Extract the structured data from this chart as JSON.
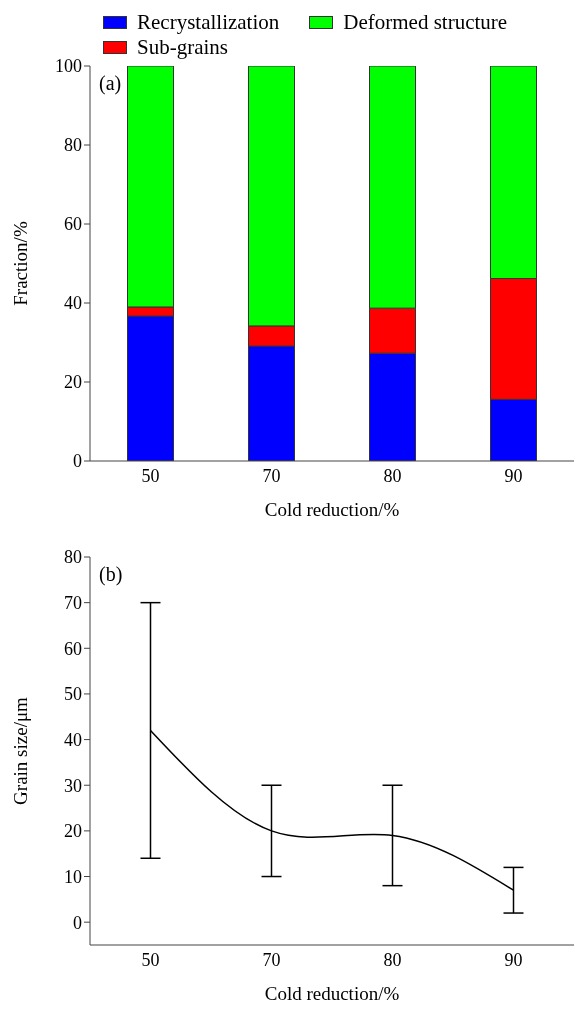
{
  "chart_data": [
    {
      "type": "bar",
      "stacked": true,
      "categories": [
        "50",
        "70",
        "80",
        "90"
      ],
      "series": [
        {
          "name": "Recrystallization",
          "color": "#0000ff",
          "values": [
            36.7,
            29.1,
            27.3,
            15.6
          ]
        },
        {
          "name": "Sub-grains",
          "color": "#ff0000",
          "values": [
            2.3,
            5.1,
            11.4,
            30.6
          ]
        },
        {
          "name": "Deformed structure",
          "color": "#00ff00",
          "values": [
            61,
            65.8,
            61.3,
            53.8
          ]
        }
      ],
      "ylim": [
        0,
        100
      ],
      "yticks": [
        0,
        20,
        40,
        60,
        80,
        100
      ],
      "xlabel": "Cold reduction/%",
      "ylabel": "Fraction/%",
      "legend": "top",
      "annotations": [
        "(a)"
      ]
    },
    {
      "type": "line",
      "categories": [
        "50",
        "70",
        "80",
        "90"
      ],
      "series": [
        {
          "color": "#000000",
          "values": [
            42,
            20,
            19,
            7
          ],
          "errors": [
            [
              14,
              70
            ],
            [
              10,
              30
            ],
            [
              8,
              30
            ],
            [
              2,
              12
            ]
          ]
        }
      ],
      "ylim": [
        -5,
        80
      ],
      "yticks": [
        0,
        10,
        20,
        30,
        40,
        50,
        60,
        70,
        80
      ],
      "xlabel": "Cold reduction/%",
      "ylabel": "Grain size/μm",
      "marker": "none",
      "annotations": [
        "(b)"
      ]
    }
  ]
}
